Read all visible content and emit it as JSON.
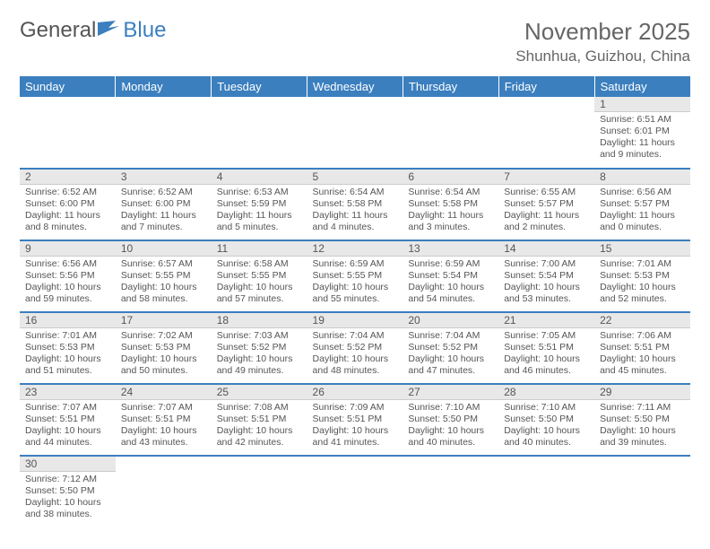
{
  "brand": {
    "part1": "General",
    "part2": "Blue"
  },
  "title": "November 2025",
  "location": "Shunhua, Guizhou, China",
  "colors": {
    "header_bg": "#3b7fbf",
    "header_text": "#ffffff",
    "daynum_bg": "#e8e8e8",
    "text": "#555555",
    "rule": "#3b7fbf",
    "page_bg": "#ffffff"
  },
  "typography": {
    "title_fontsize": 26,
    "location_fontsize": 17,
    "dayheader_fontsize": 13,
    "cell_fontsize": 10.5
  },
  "calendar": {
    "type": "table",
    "columns": [
      "Sunday",
      "Monday",
      "Tuesday",
      "Wednesday",
      "Thursday",
      "Friday",
      "Saturday"
    ],
    "weeks": [
      [
        null,
        null,
        null,
        null,
        null,
        null,
        {
          "n": "1",
          "sr": "Sunrise: 6:51 AM",
          "ss": "Sunset: 6:01 PM",
          "dl": "Daylight: 11 hours and 9 minutes."
        }
      ],
      [
        {
          "n": "2",
          "sr": "Sunrise: 6:52 AM",
          "ss": "Sunset: 6:00 PM",
          "dl": "Daylight: 11 hours and 8 minutes."
        },
        {
          "n": "3",
          "sr": "Sunrise: 6:52 AM",
          "ss": "Sunset: 6:00 PM",
          "dl": "Daylight: 11 hours and 7 minutes."
        },
        {
          "n": "4",
          "sr": "Sunrise: 6:53 AM",
          "ss": "Sunset: 5:59 PM",
          "dl": "Daylight: 11 hours and 5 minutes."
        },
        {
          "n": "5",
          "sr": "Sunrise: 6:54 AM",
          "ss": "Sunset: 5:58 PM",
          "dl": "Daylight: 11 hours and 4 minutes."
        },
        {
          "n": "6",
          "sr": "Sunrise: 6:54 AM",
          "ss": "Sunset: 5:58 PM",
          "dl": "Daylight: 11 hours and 3 minutes."
        },
        {
          "n": "7",
          "sr": "Sunrise: 6:55 AM",
          "ss": "Sunset: 5:57 PM",
          "dl": "Daylight: 11 hours and 2 minutes."
        },
        {
          "n": "8",
          "sr": "Sunrise: 6:56 AM",
          "ss": "Sunset: 5:57 PM",
          "dl": "Daylight: 11 hours and 0 minutes."
        }
      ],
      [
        {
          "n": "9",
          "sr": "Sunrise: 6:56 AM",
          "ss": "Sunset: 5:56 PM",
          "dl": "Daylight: 10 hours and 59 minutes."
        },
        {
          "n": "10",
          "sr": "Sunrise: 6:57 AM",
          "ss": "Sunset: 5:55 PM",
          "dl": "Daylight: 10 hours and 58 minutes."
        },
        {
          "n": "11",
          "sr": "Sunrise: 6:58 AM",
          "ss": "Sunset: 5:55 PM",
          "dl": "Daylight: 10 hours and 57 minutes."
        },
        {
          "n": "12",
          "sr": "Sunrise: 6:59 AM",
          "ss": "Sunset: 5:55 PM",
          "dl": "Daylight: 10 hours and 55 minutes."
        },
        {
          "n": "13",
          "sr": "Sunrise: 6:59 AM",
          "ss": "Sunset: 5:54 PM",
          "dl": "Daylight: 10 hours and 54 minutes."
        },
        {
          "n": "14",
          "sr": "Sunrise: 7:00 AM",
          "ss": "Sunset: 5:54 PM",
          "dl": "Daylight: 10 hours and 53 minutes."
        },
        {
          "n": "15",
          "sr": "Sunrise: 7:01 AM",
          "ss": "Sunset: 5:53 PM",
          "dl": "Daylight: 10 hours and 52 minutes."
        }
      ],
      [
        {
          "n": "16",
          "sr": "Sunrise: 7:01 AM",
          "ss": "Sunset: 5:53 PM",
          "dl": "Daylight: 10 hours and 51 minutes."
        },
        {
          "n": "17",
          "sr": "Sunrise: 7:02 AM",
          "ss": "Sunset: 5:53 PM",
          "dl": "Daylight: 10 hours and 50 minutes."
        },
        {
          "n": "18",
          "sr": "Sunrise: 7:03 AM",
          "ss": "Sunset: 5:52 PM",
          "dl": "Daylight: 10 hours and 49 minutes."
        },
        {
          "n": "19",
          "sr": "Sunrise: 7:04 AM",
          "ss": "Sunset: 5:52 PM",
          "dl": "Daylight: 10 hours and 48 minutes."
        },
        {
          "n": "20",
          "sr": "Sunrise: 7:04 AM",
          "ss": "Sunset: 5:52 PM",
          "dl": "Daylight: 10 hours and 47 minutes."
        },
        {
          "n": "21",
          "sr": "Sunrise: 7:05 AM",
          "ss": "Sunset: 5:51 PM",
          "dl": "Daylight: 10 hours and 46 minutes."
        },
        {
          "n": "22",
          "sr": "Sunrise: 7:06 AM",
          "ss": "Sunset: 5:51 PM",
          "dl": "Daylight: 10 hours and 45 minutes."
        }
      ],
      [
        {
          "n": "23",
          "sr": "Sunrise: 7:07 AM",
          "ss": "Sunset: 5:51 PM",
          "dl": "Daylight: 10 hours and 44 minutes."
        },
        {
          "n": "24",
          "sr": "Sunrise: 7:07 AM",
          "ss": "Sunset: 5:51 PM",
          "dl": "Daylight: 10 hours and 43 minutes."
        },
        {
          "n": "25",
          "sr": "Sunrise: 7:08 AM",
          "ss": "Sunset: 5:51 PM",
          "dl": "Daylight: 10 hours and 42 minutes."
        },
        {
          "n": "26",
          "sr": "Sunrise: 7:09 AM",
          "ss": "Sunset: 5:51 PM",
          "dl": "Daylight: 10 hours and 41 minutes."
        },
        {
          "n": "27",
          "sr": "Sunrise: 7:10 AM",
          "ss": "Sunset: 5:50 PM",
          "dl": "Daylight: 10 hours and 40 minutes."
        },
        {
          "n": "28",
          "sr": "Sunrise: 7:10 AM",
          "ss": "Sunset: 5:50 PM",
          "dl": "Daylight: 10 hours and 40 minutes."
        },
        {
          "n": "29",
          "sr": "Sunrise: 7:11 AM",
          "ss": "Sunset: 5:50 PM",
          "dl": "Daylight: 10 hours and 39 minutes."
        }
      ],
      [
        {
          "n": "30",
          "sr": "Sunrise: 7:12 AM",
          "ss": "Sunset: 5:50 PM",
          "dl": "Daylight: 10 hours and 38 minutes."
        },
        null,
        null,
        null,
        null,
        null,
        null
      ]
    ]
  }
}
